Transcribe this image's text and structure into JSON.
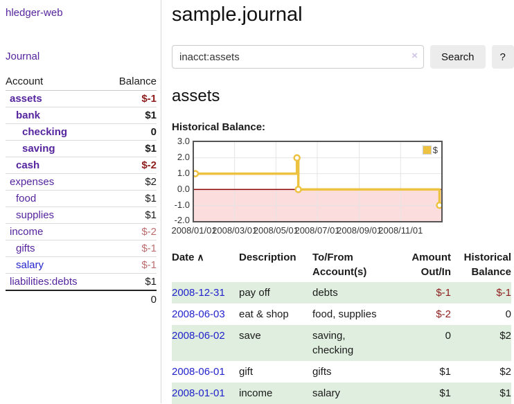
{
  "sidebar": {
    "app_title": "hledger-web",
    "journal_link": "Journal",
    "accounts_table": {
      "account_header": "Account",
      "balance_header": "Balance",
      "rows": [
        {
          "name": "assets",
          "balance": "$-1",
          "level": 1,
          "bold": true
        },
        {
          "name": "bank",
          "balance": "$1",
          "level": 2,
          "bold": true
        },
        {
          "name": "checking",
          "balance": "0",
          "level": 3,
          "bold": true
        },
        {
          "name": "saving",
          "balance": "$1",
          "level": 3,
          "bold": true
        },
        {
          "name": "cash",
          "balance": "$-2",
          "level": 2,
          "bold": true
        },
        {
          "name": "expenses",
          "balance": "$2",
          "level": 1,
          "bold": false
        },
        {
          "name": "food",
          "balance": "$1",
          "level": 2,
          "bold": false
        },
        {
          "name": "supplies",
          "balance": "$1",
          "level": 2,
          "bold": false
        },
        {
          "name": "income",
          "balance": "$-2",
          "level": 1,
          "bold": false
        },
        {
          "name": "gifts",
          "balance": "$-1",
          "level": 2,
          "bold": false
        },
        {
          "name": "salary",
          "balance": "$-1",
          "level": 2,
          "bold": false,
          "unvisited": true
        },
        {
          "name": "liabilities:debts",
          "balance": "$1",
          "level": 1,
          "bold": false
        }
      ],
      "total": "0"
    }
  },
  "main": {
    "title": "sample.journal",
    "search": {
      "value": "inacct:assets",
      "clear_icon": "×",
      "button_label": "Search",
      "help_label": "?"
    },
    "account_heading": "assets",
    "chart_label": "Historical Balance:"
  },
  "register": {
    "columns": [
      {
        "lines": "Date",
        "align": "left",
        "sortable": true,
        "sort_icon": "∧"
      },
      {
        "lines": "Description",
        "align": "left"
      },
      {
        "lines": "To/From\nAccount(s)",
        "align": "left"
      },
      {
        "lines": "Amount\nOut/In",
        "align": "right"
      },
      {
        "lines": "Historical\nBalance",
        "align": "right"
      }
    ],
    "rows": [
      {
        "date": "2008-12-31",
        "description": "pay off",
        "accounts": "debts",
        "amount": "$-1",
        "balance": "$-1"
      },
      {
        "date": "2008-06-03",
        "description": "eat & shop",
        "accounts": "food, supplies",
        "amount": "$-2",
        "balance": "0"
      },
      {
        "date": "2008-06-02",
        "description": "save",
        "accounts": "saving, checking",
        "amount": "0",
        "balance": "$2"
      },
      {
        "date": "2008-06-01",
        "description": "gift",
        "accounts": "gifts",
        "amount": "$1",
        "balance": "$2"
      },
      {
        "date": "2008-01-01",
        "description": "income",
        "accounts": "salary",
        "amount": "$1",
        "balance": "$1"
      }
    ]
  },
  "chart_data": {
    "type": "line",
    "title": "Historical Balance:",
    "step": true,
    "series": [
      {
        "name": "$",
        "color": "#edc240",
        "points": [
          {
            "x": "2008-01-01",
            "y": 1
          },
          {
            "x": "2008-06-01",
            "y": 2
          },
          {
            "x": "2008-06-03",
            "y": 0
          },
          {
            "x": "2008-12-31",
            "y": -1
          }
        ]
      }
    ],
    "xlim": [
      "2008-01-01",
      "2008-12-31"
    ],
    "ylim": [
      -2,
      3
    ],
    "x_ticks": [
      "2008/01/01",
      "2008/03/01",
      "2008/05/01",
      "2008/07/01",
      "2008/09/01",
      "2008/11/01"
    ],
    "y_ticks": [
      "3.0",
      "2.0",
      "1.0",
      "0.0",
      "-1.0",
      "-2.0"
    ],
    "grid": true,
    "legend_position": "top-right",
    "negative_region_color": "#fcdddd",
    "zero_line_color": "#8b0000"
  }
}
